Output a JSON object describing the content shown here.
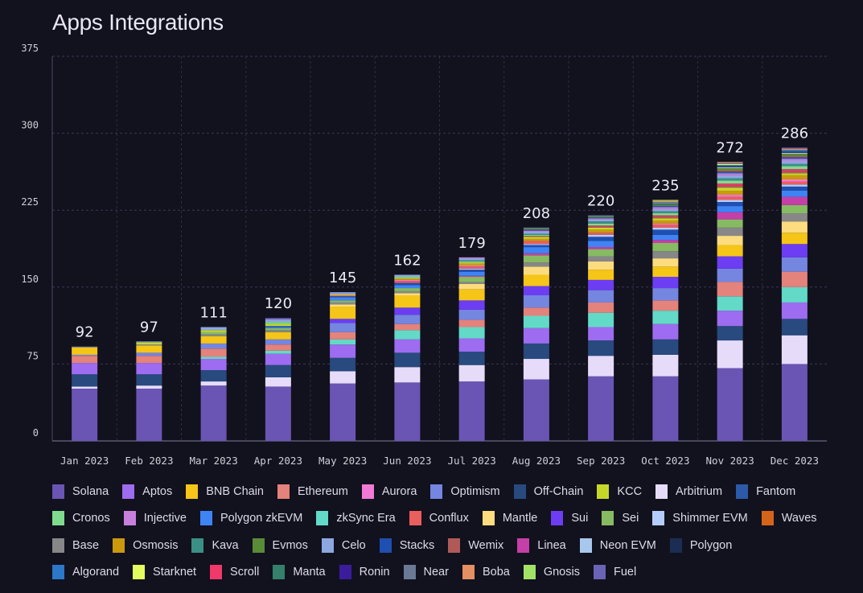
{
  "chart_data": {
    "type": "bar",
    "stacked": true,
    "title": "Apps Integrations",
    "xlabel": "",
    "ylabel": "",
    "ylim": [
      0,
      375
    ],
    "yticks": [
      0,
      75,
      150,
      225,
      300,
      375
    ],
    "grid": true,
    "legend_position": "bottom",
    "categories": [
      "Jan 2023",
      "Feb 2023",
      "Mar 2023",
      "Apr 2023",
      "May 2023",
      "Jun 2023",
      "Jul 2023",
      "Aug 2023",
      "Sep 2023",
      "Oct 2023",
      "Nov 2023",
      "Dec 2023"
    ],
    "totals": [
      92,
      97,
      111,
      120,
      145,
      162,
      179,
      208,
      220,
      235,
      272,
      286
    ],
    "series": [
      {
        "name": "Solana",
        "color": "#6a55b5",
        "values": [
          51,
          51,
          54,
          53,
          56,
          57,
          58,
          60,
          63,
          63,
          71,
          75
        ]
      },
      {
        "name": "Aptos",
        "color": "#9d6cf0",
        "values": [
          11,
          11,
          11,
          11,
          13,
          13,
          13,
          15,
          13,
          15,
          15,
          16
        ]
      },
      {
        "name": "BNB Chain",
        "color": "#f5c518",
        "values": [
          7,
          7,
          7,
          7,
          12,
          12,
          11,
          11,
          10,
          10,
          11,
          11
        ]
      },
      {
        "name": "Ethereum",
        "color": "#e4827c",
        "values": [
          7,
          7,
          8,
          6,
          7,
          6,
          7,
          8,
          10,
          10,
          14,
          15
        ]
      },
      {
        "name": "Aurora",
        "color": "#f27ad6",
        "values": [
          0,
          0,
          0,
          0,
          0,
          1,
          1,
          0,
          0,
          1,
          2,
          2
        ]
      },
      {
        "name": "Optimism",
        "color": "#7486e0",
        "values": [
          1,
          3,
          5,
          5,
          9,
          9,
          10,
          12,
          12,
          12,
          13,
          14
        ]
      },
      {
        "name": "Off-Chain",
        "color": "#284a7e",
        "values": [
          12,
          11,
          11,
          12,
          13,
          14,
          13,
          15,
          15,
          15,
          14,
          16
        ]
      },
      {
        "name": "KCC",
        "color": "#c5d82a",
        "values": [
          0,
          2,
          2,
          2,
          1,
          1,
          1,
          2,
          2,
          2,
          3,
          2
        ]
      },
      {
        "name": "Arbitrium",
        "color": "#e6dcfa",
        "values": [
          2,
          3,
          4,
          9,
          12,
          15,
          16,
          20,
          20,
          21,
          27,
          28
        ]
      },
      {
        "name": "Fantom",
        "color": "#2c5aa8",
        "values": [
          0,
          0,
          0,
          1,
          0,
          0,
          0,
          1,
          1,
          1,
          2,
          2
        ]
      },
      {
        "name": "Cronos",
        "color": "#7fdc8e",
        "values": [
          0,
          0,
          0,
          2,
          0,
          1,
          1,
          1,
          2,
          2,
          3,
          3
        ]
      },
      {
        "name": "Injective",
        "color": "#c77fdc",
        "values": [
          0,
          0,
          0,
          1,
          0,
          0,
          1,
          1,
          1,
          2,
          2,
          2
        ]
      },
      {
        "name": "Polygon zkEVM",
        "color": "#3f84f5",
        "values": [
          0,
          0,
          0,
          1,
          3,
          3,
          4,
          6,
          6,
          5,
          6,
          6
        ]
      },
      {
        "name": "zkSync Era",
        "color": "#63d9c8",
        "values": [
          0,
          0,
          2,
          3,
          5,
          9,
          11,
          12,
          14,
          13,
          14,
          15
        ]
      },
      {
        "name": "Conflux",
        "color": "#eb5e5e",
        "values": [
          0,
          0,
          0,
          0,
          1,
          2,
          2,
          3,
          2,
          3,
          3,
          3
        ]
      },
      {
        "name": "Mantle",
        "color": "#fddc7f",
        "values": [
          0,
          0,
          0,
          0,
          2,
          2,
          5,
          8,
          8,
          8,
          9,
          11
        ]
      },
      {
        "name": "Sui",
        "color": "#6c3df2",
        "values": [
          0,
          0,
          0,
          0,
          4,
          7,
          9,
          9,
          10,
          11,
          12,
          13
        ]
      },
      {
        "name": "Sei",
        "color": "#86bb62",
        "values": [
          0,
          0,
          2,
          2,
          2,
          3,
          5,
          7,
          7,
          8,
          8,
          8
        ]
      },
      {
        "name": "Shimmer EVM",
        "color": "#b5cdfc",
        "values": [
          0,
          0,
          0,
          0,
          0,
          0,
          1,
          1,
          2,
          2,
          2,
          2
        ]
      },
      {
        "name": "Waves",
        "color": "#d3641a",
        "values": [
          0,
          0,
          0,
          0,
          0,
          0,
          0,
          0,
          0,
          0,
          1,
          1
        ]
      },
      {
        "name": "Base",
        "color": "#878787",
        "values": [
          1,
          1,
          2,
          2,
          2,
          2,
          2,
          4,
          5,
          7,
          8,
          8
        ]
      },
      {
        "name": "Osmosis",
        "color": "#c99a0e",
        "values": [
          0,
          0,
          0,
          0,
          0,
          1,
          2,
          2,
          3,
          3,
          4,
          4
        ]
      },
      {
        "name": "Kava",
        "color": "#3b8f85",
        "values": [
          0,
          0,
          0,
          0,
          0,
          0,
          1,
          1,
          2,
          2,
          2,
          2
        ]
      },
      {
        "name": "Evmos",
        "color": "#5a8b36",
        "values": [
          0,
          0,
          0,
          0,
          0,
          0,
          0,
          1,
          1,
          1,
          2,
          2
        ]
      },
      {
        "name": "Celo",
        "color": "#8da7e0",
        "values": [
          0,
          1,
          3,
          2,
          2,
          2,
          2,
          2,
          2,
          2,
          3,
          3
        ]
      },
      {
        "name": "Stacks",
        "color": "#1f4fb0",
        "values": [
          0,
          0,
          0,
          1,
          1,
          2,
          2,
          2,
          4,
          5,
          4,
          4
        ]
      },
      {
        "name": "Wemix",
        "color": "#b05a58",
        "values": [
          0,
          0,
          0,
          0,
          0,
          0,
          0,
          1,
          1,
          2,
          2,
          2
        ]
      },
      {
        "name": "Linea",
        "color": "#c53fa8",
        "values": [
          0,
          0,
          0,
          0,
          0,
          0,
          1,
          2,
          2,
          3,
          7,
          8
        ]
      },
      {
        "name": "Neon EVM",
        "color": "#a7c8ec",
        "values": [
          0,
          0,
          0,
          0,
          0,
          0,
          0,
          0,
          0,
          0,
          1,
          1
        ]
      },
      {
        "name": "Polygon",
        "color": "#1b2d52",
        "values": [
          0,
          0,
          0,
          0,
          0,
          0,
          0,
          0,
          0,
          0,
          1,
          1
        ]
      },
      {
        "name": "Algorand",
        "color": "#2c78c8",
        "values": [
          0,
          0,
          0,
          0,
          0,
          0,
          0,
          0,
          0,
          0,
          1,
          1
        ]
      },
      {
        "name": "Starknet",
        "color": "#e5fc5e",
        "values": [
          0,
          0,
          0,
          0,
          0,
          0,
          0,
          0,
          0,
          0,
          1,
          0
        ]
      },
      {
        "name": "Scroll",
        "color": "#f0386a",
        "values": [
          0,
          0,
          0,
          0,
          0,
          0,
          0,
          0,
          1,
          1,
          2,
          2
        ]
      },
      {
        "name": "Manta",
        "color": "#34806a",
        "values": [
          0,
          0,
          0,
          0,
          0,
          0,
          0,
          0,
          0,
          1,
          0,
          0
        ]
      },
      {
        "name": "Ronin",
        "color": "#3a1d9c",
        "values": [
          0,
          0,
          0,
          0,
          0,
          0,
          0,
          0,
          0,
          0,
          0,
          0
        ]
      },
      {
        "name": "Near",
        "color": "#6a7a94",
        "values": [
          0,
          0,
          0,
          0,
          0,
          0,
          0,
          1,
          1,
          2,
          1,
          1
        ]
      },
      {
        "name": "Boba",
        "color": "#e68f62",
        "values": [
          0,
          0,
          0,
          0,
          0,
          0,
          0,
          0,
          0,
          1,
          1,
          1
        ]
      },
      {
        "name": "Gnosis",
        "color": "#a2e266",
        "values": [
          0,
          0,
          0,
          0,
          0,
          0,
          0,
          0,
          0,
          1,
          0,
          0
        ]
      },
      {
        "name": "Fuel",
        "color": "#6b63b5",
        "values": [
          0,
          0,
          0,
          0,
          0,
          0,
          0,
          0,
          0,
          0,
          0,
          1
        ]
      }
    ]
  }
}
